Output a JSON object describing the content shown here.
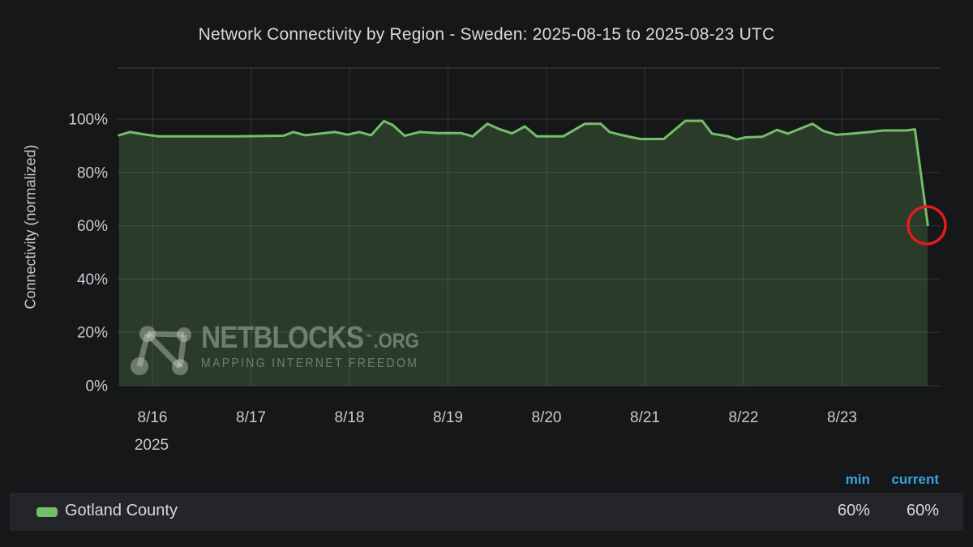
{
  "title": "Network Connectivity by Region - Sweden: 2025-08-15 to 2025-08-23 UTC",
  "y_axis_label": "Connectivity (normalized)",
  "watermark": {
    "brand": "NETBLOCKS",
    "tm": "™",
    "tld": ".ORG",
    "tagline": "MAPPING INTERNET FREEDOM"
  },
  "legend": {
    "columns": [
      "min",
      "current"
    ],
    "series": [
      {
        "label": "Gotland County",
        "min": "60%",
        "current": "60%"
      }
    ]
  },
  "colors": {
    "background": "#161719",
    "legend_row_background": "#232529",
    "text_primary": "#d8d9da",
    "text_ticks": "#c9cacd",
    "header_blue": "#3aa1e0",
    "series_green": "#73bf69",
    "fill_green": "rgba(115,191,105,0.22)",
    "grid": "rgba(205,215,225,0.10)",
    "plot_border": "rgba(205,215,225,0.16)",
    "annotation_red": "#e01d1d",
    "watermark_gray": "rgba(208,216,208,0.40)"
  },
  "chart_data": {
    "type": "area",
    "title": "Network Connectivity by Region - Sweden: 2025-08-15 to 2025-08-23 UTC",
    "xlabel": "",
    "ylabel": "Connectivity (normalized)",
    "x_unit": "days since 2025-08-16 00:00 UTC",
    "xlim": [
      -0.354,
      8.0
    ],
    "ylim": [
      0,
      119.2
    ],
    "grid": true,
    "legend_position": "bottom",
    "x_ticks": [
      {
        "x": 0,
        "label": "8/16",
        "sublabel": "2025"
      },
      {
        "x": 1,
        "label": "8/17"
      },
      {
        "x": 2,
        "label": "8/18"
      },
      {
        "x": 3,
        "label": "8/19"
      },
      {
        "x": 4,
        "label": "8/20"
      },
      {
        "x": 5,
        "label": "8/21"
      },
      {
        "x": 6,
        "label": "8/22"
      },
      {
        "x": 7,
        "label": "8/23"
      }
    ],
    "y_ticks": [
      {
        "y": 0,
        "label": "0%"
      },
      {
        "y": 20,
        "label": "20%"
      },
      {
        "y": 40,
        "label": "40%"
      },
      {
        "y": 60,
        "label": "60%"
      },
      {
        "y": 80,
        "label": "80%"
      },
      {
        "y": 100,
        "label": "100%"
      }
    ],
    "series": [
      {
        "name": "Gotland County",
        "color": "#73bf69",
        "min": "60%",
        "current": "60%",
        "points": [
          [
            -0.34,
            94.0
          ],
          [
            -0.23,
            95.2
          ],
          [
            -0.08,
            94.3
          ],
          [
            0.06,
            93.6
          ],
          [
            0.84,
            93.6
          ],
          [
            1.33,
            93.8
          ],
          [
            1.43,
            95.2
          ],
          [
            1.55,
            94.0
          ],
          [
            1.85,
            95.2
          ],
          [
            1.98,
            94.2
          ],
          [
            2.1,
            95.2
          ],
          [
            2.22,
            94.0
          ],
          [
            2.35,
            99.3
          ],
          [
            2.44,
            97.8
          ],
          [
            2.56,
            93.8
          ],
          [
            2.71,
            95.2
          ],
          [
            2.9,
            94.8
          ],
          [
            3.13,
            94.8
          ],
          [
            3.25,
            93.6
          ],
          [
            3.4,
            98.3
          ],
          [
            3.52,
            96.3
          ],
          [
            3.65,
            94.7
          ],
          [
            3.78,
            97.3
          ],
          [
            3.9,
            93.6
          ],
          [
            4.17,
            93.6
          ],
          [
            4.39,
            98.3
          ],
          [
            4.55,
            98.3
          ],
          [
            4.64,
            95.2
          ],
          [
            4.77,
            94.0
          ],
          [
            4.95,
            92.6
          ],
          [
            5.19,
            92.6
          ],
          [
            5.41,
            99.4
          ],
          [
            5.58,
            99.4
          ],
          [
            5.68,
            94.6
          ],
          [
            5.84,
            93.6
          ],
          [
            5.93,
            92.4
          ],
          [
            6.02,
            93.2
          ],
          [
            6.19,
            93.4
          ],
          [
            6.34,
            96.0
          ],
          [
            6.45,
            94.6
          ],
          [
            6.7,
            98.3
          ],
          [
            6.81,
            95.6
          ],
          [
            6.94,
            94.2
          ],
          [
            7.1,
            94.6
          ],
          [
            7.28,
            95.2
          ],
          [
            7.42,
            95.8
          ],
          [
            7.65,
            95.8
          ],
          [
            7.74,
            96.2
          ],
          [
            7.87,
            60.3
          ]
        ]
      }
    ],
    "annotations": [
      {
        "type": "circle",
        "x": 7.86,
        "y": 60.2,
        "radius_px": 23,
        "stroke_px": 3.5,
        "color": "#e01d1d"
      }
    ]
  }
}
